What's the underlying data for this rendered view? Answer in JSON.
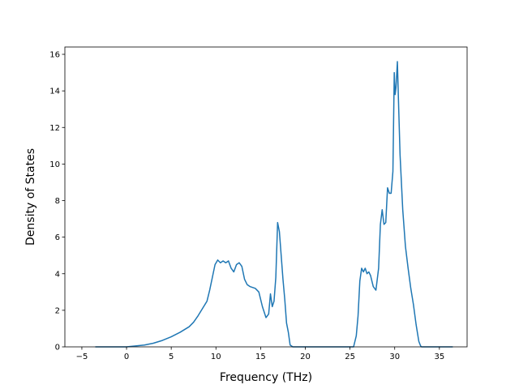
{
  "chart_data": {
    "type": "line",
    "xlabel": "Frequency (THz)",
    "ylabel": "Density of States",
    "xlim": [
      -6.9,
      38.1
    ],
    "ylim": [
      0,
      16.4
    ],
    "xticks": [
      -5,
      0,
      5,
      10,
      15,
      20,
      25,
      30,
      35
    ],
    "xtick_labels": [
      "−5",
      "0",
      "5",
      "10",
      "15",
      "20",
      "25",
      "30",
      "35"
    ],
    "yticks": [
      0,
      2,
      4,
      6,
      8,
      10,
      12,
      14,
      16
    ],
    "ytick_labels": [
      "0",
      "2",
      "4",
      "6",
      "8",
      "10",
      "12",
      "14",
      "16"
    ],
    "grid": false,
    "line_color": "#1f77b4",
    "series": [
      {
        "x": [
          -3.5,
          -1,
          0,
          1,
          2,
          3,
          4,
          5,
          6,
          7,
          7.5,
          8,
          8.5,
          9,
          9.3,
          9.6,
          9.9,
          10.2,
          10.5,
          10.8,
          11.1,
          11.4,
          11.7,
          12,
          12.3,
          12.6,
          12.9,
          13.2,
          13.5,
          13.8,
          14.1,
          14.4,
          14.8,
          15.2,
          15.6,
          15.9,
          16.1,
          16.3,
          16.5,
          16.7,
          16.9,
          17.1,
          17.3,
          17.5,
          17.7,
          17.9,
          18.1,
          18.3,
          18.6,
          19,
          20,
          25.4,
          25.7,
          25.9,
          26.1,
          26.3,
          26.5,
          26.7,
          26.9,
          27.1,
          27.3,
          27.6,
          27.9,
          28.2,
          28.4,
          28.6,
          28.8,
          29,
          29.2,
          29.4,
          29.6,
          29.8,
          29.95,
          30.05,
          30.15,
          30.3,
          30.45,
          30.6,
          30.9,
          31.2,
          31.5,
          31.8,
          32.1,
          32.4,
          32.7,
          32.9,
          33,
          34,
          36.5
        ],
        "y": [
          0,
          0,
          0,
          0.05,
          0.1,
          0.2,
          0.35,
          0.55,
          0.8,
          1.1,
          1.35,
          1.7,
          2.1,
          2.5,
          3.1,
          3.8,
          4.5,
          4.75,
          4.6,
          4.7,
          4.6,
          4.7,
          4.3,
          4.1,
          4.5,
          4.6,
          4.4,
          3.7,
          3.4,
          3.3,
          3.25,
          3.2,
          3.0,
          2.2,
          1.6,
          1.8,
          2.9,
          2.2,
          2.5,
          3.8,
          6.8,
          6.3,
          5.0,
          3.7,
          2.6,
          1.3,
          0.8,
          0.1,
          0,
          0,
          0,
          0,
          0.6,
          1.7,
          3.6,
          4.3,
          4.1,
          4.3,
          4.0,
          4.1,
          3.9,
          3.3,
          3.1,
          4.3,
          6.7,
          7.5,
          6.7,
          6.8,
          8.7,
          8.4,
          8.4,
          9.6,
          15.0,
          13.8,
          14.2,
          15.6,
          13.0,
          10.5,
          7.5,
          5.5,
          4.3,
          3.2,
          2.3,
          1.2,
          0.3,
          0.05,
          0,
          0,
          0
        ]
      }
    ]
  }
}
